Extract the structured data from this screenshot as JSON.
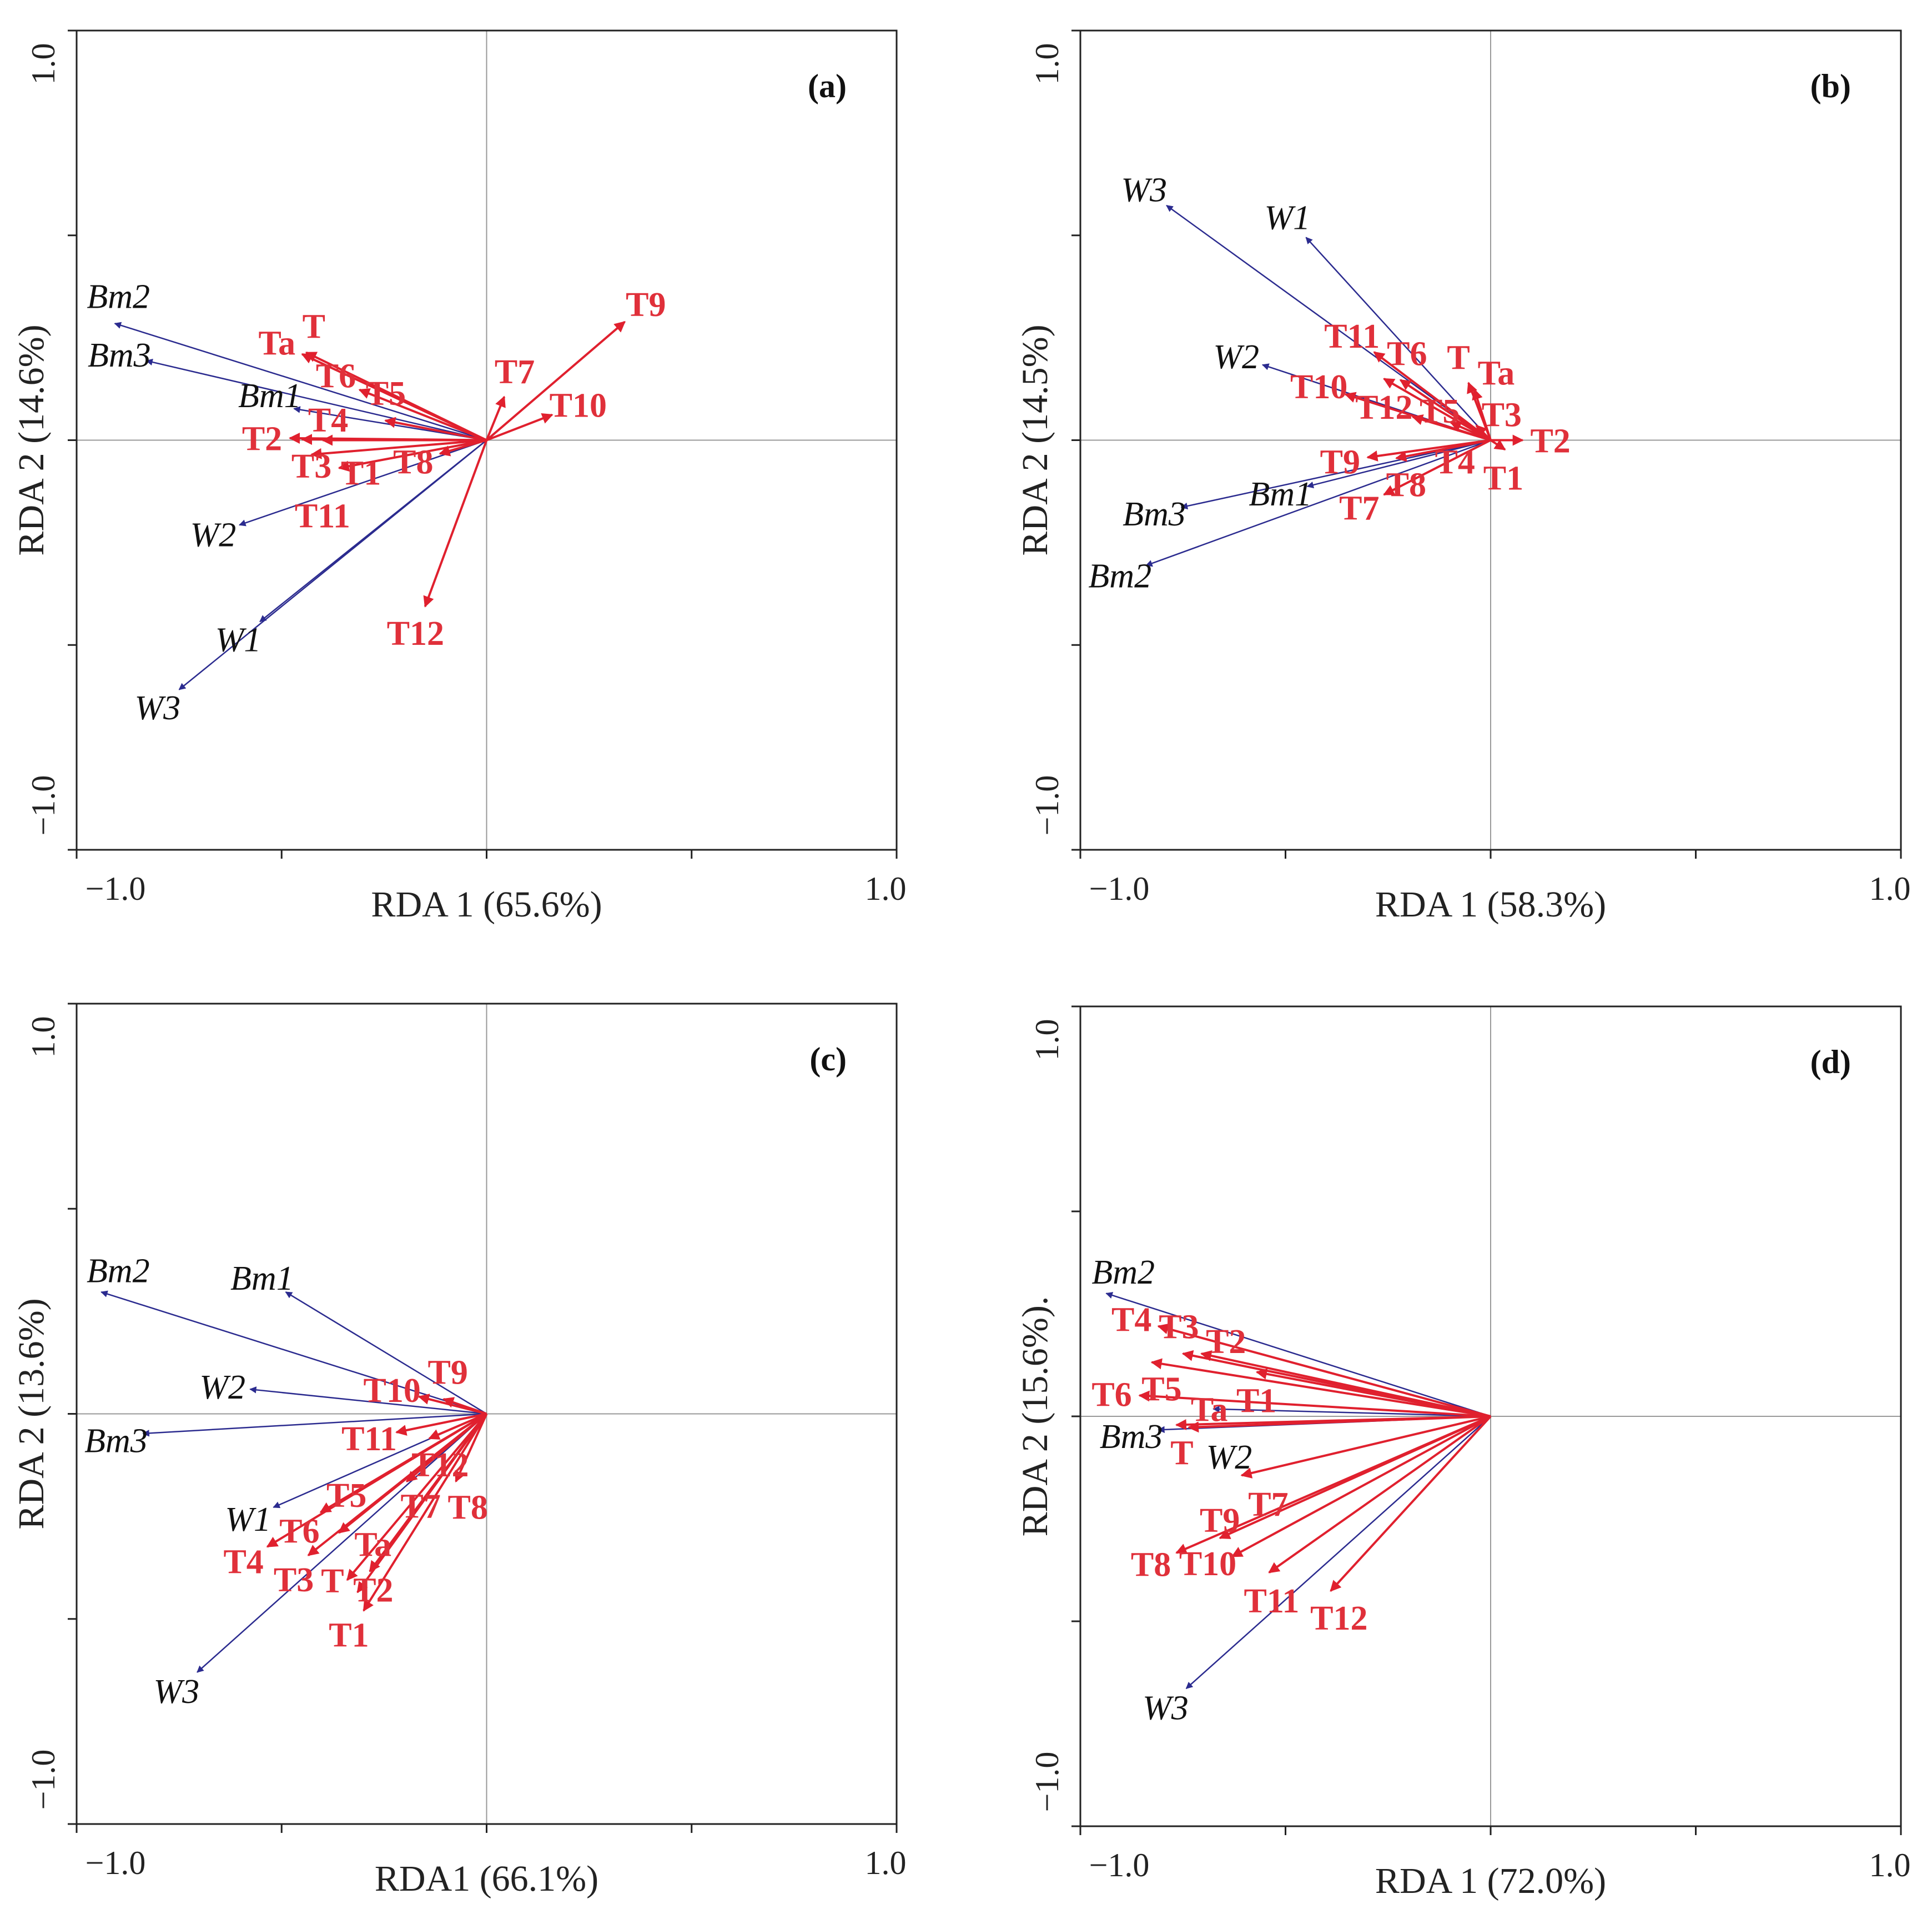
{
  "colors": {
    "env": "#2b2b8f",
    "species": "#e0202e",
    "species_label": "#e0303a"
  },
  "chart_data": [
    {
      "type": "scatter",
      "panel": "(a)",
      "xlabel": "RDA 1 (65.6%)",
      "ylabel": "RDA 2 (14.6%)",
      "xlim": [
        -1.0,
        1.0
      ],
      "ylim": [
        -1.0,
        1.0
      ],
      "xticklabels": [
        "−1.0",
        "1.0"
      ],
      "yticklabels": [
        "−1.0",
        "1.0"
      ],
      "vectors": [
        {
          "name": "Bm2",
          "group": "env",
          "x": -0.907,
          "y": 0.285
        },
        {
          "name": "Bm3",
          "group": "env",
          "x": -0.83,
          "y": 0.194
        },
        {
          "name": "Bm1",
          "group": "env",
          "x": -0.47,
          "y": 0.077
        },
        {
          "name": "W2",
          "group": "env",
          "x": -0.603,
          "y": -0.207
        },
        {
          "name": "W1",
          "group": "env",
          "x": -0.553,
          "y": -0.443
        },
        {
          "name": "W3",
          "group": "env",
          "x": -0.75,
          "y": -0.609
        },
        {
          "name": "Ta",
          "group": "species",
          "x": -0.45,
          "y": 0.21
        },
        {
          "name": "T",
          "group": "species",
          "x": -0.44,
          "y": 0.214
        },
        {
          "name": "T6",
          "group": "species",
          "x": -0.31,
          "y": 0.123
        },
        {
          "name": "T5",
          "group": "species",
          "x": -0.247,
          "y": 0.048
        },
        {
          "name": "T2",
          "group": "species",
          "x": -0.48,
          "y": 0.005
        },
        {
          "name": "T3",
          "group": "species",
          "x": -0.45,
          "y": 0.002
        },
        {
          "name": "T1",
          "group": "species",
          "x": -0.4,
          "y": 0.0
        },
        {
          "name": "T4",
          "group": "species",
          "x": -0.427,
          "y": -0.035
        },
        {
          "name": "T11",
          "group": "species",
          "x": -0.36,
          "y": -0.068
        },
        {
          "name": "T8",
          "group": "species",
          "x": -0.114,
          "y": -0.033
        },
        {
          "name": "T7",
          "group": "species",
          "x": 0.043,
          "y": 0.106
        },
        {
          "name": "T9",
          "group": "species",
          "x": 0.337,
          "y": 0.289
        },
        {
          "name": "T10",
          "group": "species",
          "x": 0.16,
          "y": 0.062
        },
        {
          "name": "T12",
          "group": "species",
          "x": -0.15,
          "y": -0.406
        }
      ]
    },
    {
      "type": "scatter",
      "panel": "(b)",
      "xlabel": "RDA 1 (58.3%)",
      "ylabel": "RDA 2 (14.5%)",
      "xlim": [
        -1.0,
        1.0
      ],
      "ylim": [
        -1.0,
        1.0
      ],
      "xticklabels": [
        "−1.0",
        "1.0"
      ],
      "yticklabels": [
        "−1.0",
        "1.0"
      ],
      "vectors": [
        {
          "name": "W3",
          "group": "env",
          "x": -0.79,
          "y": 0.573
        },
        {
          "name": "W1",
          "group": "env",
          "x": -0.45,
          "y": 0.495
        },
        {
          "name": "W2",
          "group": "env",
          "x": -0.556,
          "y": 0.184
        },
        {
          "name": "Bm1",
          "group": "env",
          "x": -0.447,
          "y": -0.113
        },
        {
          "name": "Bm3",
          "group": "env",
          "x": -0.754,
          "y": -0.164
        },
        {
          "name": "Bm2",
          "group": "env",
          "x": -0.84,
          "y": -0.306
        },
        {
          "name": "T11",
          "group": "species",
          "x": -0.284,
          "y": 0.215
        },
        {
          "name": "T6",
          "group": "species",
          "x": -0.22,
          "y": 0.147
        },
        {
          "name": "T12",
          "group": "species",
          "x": -0.26,
          "y": 0.15
        },
        {
          "name": "T10",
          "group": "species",
          "x": -0.354,
          "y": 0.112
        },
        {
          "name": "T5",
          "group": "species",
          "x": -0.19,
          "y": 0.057
        },
        {
          "name": "T4",
          "group": "species",
          "x": -0.097,
          "y": 0.043
        },
        {
          "name": "T",
          "group": "species",
          "x": -0.054,
          "y": 0.14
        },
        {
          "name": "Ta",
          "group": "species",
          "x": -0.04,
          "y": 0.124
        },
        {
          "name": "T3",
          "group": "species",
          "x": -0.035,
          "y": 0.036
        },
        {
          "name": "T2",
          "group": "species",
          "x": 0.078,
          "y": 0.0
        },
        {
          "name": "T1",
          "group": "species",
          "x": 0.035,
          "y": -0.023
        },
        {
          "name": "T9",
          "group": "species",
          "x": -0.3,
          "y": -0.042
        },
        {
          "name": "T8",
          "group": "species",
          "x": -0.23,
          "y": -0.044
        },
        {
          "name": "T7",
          "group": "species",
          "x": -0.26,
          "y": -0.133
        }
      ]
    },
    {
      "type": "scatter",
      "panel": "(c)",
      "xlabel": "RDA1 (66.1%)",
      "ylabel": "RDA 2 (13.6%)",
      "xlim": [
        -1.0,
        1.0
      ],
      "ylim": [
        -1.0,
        1.0
      ],
      "xticklabels": [
        "−1.0",
        "1.0"
      ],
      "yticklabels": [
        "−1.0",
        "1.0"
      ],
      "vectors": [
        {
          "name": "Bm2",
          "group": "env",
          "x": -0.94,
          "y": 0.297
        },
        {
          "name": "Bm1",
          "group": "env",
          "x": -0.49,
          "y": 0.297
        },
        {
          "name": "W2",
          "group": "env",
          "x": -0.577,
          "y": 0.06
        },
        {
          "name": "Bm3",
          "group": "env",
          "x": -0.838,
          "y": -0.048
        },
        {
          "name": "W1",
          "group": "env",
          "x": -0.52,
          "y": -0.228
        },
        {
          "name": "W3",
          "group": "env",
          "x": -0.706,
          "y": -0.63
        },
        {
          "name": "T10",
          "group": "species",
          "x": -0.165,
          "y": 0.042
        },
        {
          "name": "T9",
          "group": "species",
          "x": -0.105,
          "y": 0.036
        },
        {
          "name": "T11",
          "group": "species",
          "x": -0.22,
          "y": -0.045
        },
        {
          "name": "T12",
          "group": "species",
          "x": -0.14,
          "y": -0.06
        },
        {
          "name": "T6",
          "group": "species",
          "x": -0.405,
          "y": -0.24
        },
        {
          "name": "T7",
          "group": "species",
          "x": -0.195,
          "y": -0.165
        },
        {
          "name": "T8",
          "group": "species",
          "x": -0.075,
          "y": -0.165
        },
        {
          "name": "T4",
          "group": "species",
          "x": -0.535,
          "y": -0.324
        },
        {
          "name": "T3",
          "group": "species",
          "x": -0.435,
          "y": -0.345
        },
        {
          "name": "T5",
          "group": "species",
          "x": -0.36,
          "y": -0.29
        },
        {
          "name": "Ta",
          "group": "species",
          "x": -0.285,
          "y": -0.384
        },
        {
          "name": "T2",
          "group": "species",
          "x": -0.34,
          "y": -0.405
        },
        {
          "name": "T",
          "group": "species",
          "x": -0.315,
          "y": -0.435
        },
        {
          "name": "T1",
          "group": "species",
          "x": -0.3,
          "y": -0.48
        }
      ]
    },
    {
      "type": "scatter",
      "panel": "(d)",
      "xlabel": "RDA 1 (72.0%)",
      "ylabel": "RDA 2 (15.6%).",
      "xlim": [
        -1.0,
        1.0
      ],
      "ylim": [
        -1.0,
        1.0
      ],
      "xticklabels": [
        "−1.0",
        "1.0"
      ],
      "yticklabels": [
        "−1.0",
        "1.0"
      ],
      "vectors": [
        {
          "name": "Bm2",
          "group": "env",
          "x": -0.937,
          "y": 0.3
        },
        {
          "name": "W2",
          "group": "env",
          "x": -0.676,
          "y": 0.018
        },
        {
          "name": "Bm3",
          "group": "env",
          "x": -0.81,
          "y": -0.033
        },
        {
          "name": "W3",
          "group": "env",
          "x": -0.742,
          "y": -0.664
        },
        {
          "name": "T4",
          "group": "species",
          "x": -0.81,
          "y": 0.22
        },
        {
          "name": "T2",
          "group": "species",
          "x": -0.705,
          "y": 0.153
        },
        {
          "name": "T1",
          "group": "species",
          "x": -0.57,
          "y": 0.108
        },
        {
          "name": "T3",
          "group": "species",
          "x": -0.75,
          "y": 0.153
        },
        {
          "name": "T5",
          "group": "species",
          "x": -0.826,
          "y": 0.132
        },
        {
          "name": "T6",
          "group": "species",
          "x": -0.856,
          "y": 0.051
        },
        {
          "name": "T",
          "group": "species",
          "x": -0.766,
          "y": -0.021
        },
        {
          "name": "Ta",
          "group": "species",
          "x": -0.736,
          "y": -0.027
        },
        {
          "name": "T7",
          "group": "species",
          "x": -0.607,
          "y": -0.144
        },
        {
          "name": "T10",
          "group": "species",
          "x": -0.66,
          "y": -0.297
        },
        {
          "name": "T8",
          "group": "species",
          "x": -0.766,
          "y": -0.333
        },
        {
          "name": "T9",
          "group": "species",
          "x": -0.63,
          "y": -0.342
        },
        {
          "name": "T11",
          "group": "species",
          "x": -0.54,
          "y": -0.381
        },
        {
          "name": "T12",
          "group": "species",
          "x": -0.39,
          "y": -0.426
        }
      ]
    }
  ]
}
